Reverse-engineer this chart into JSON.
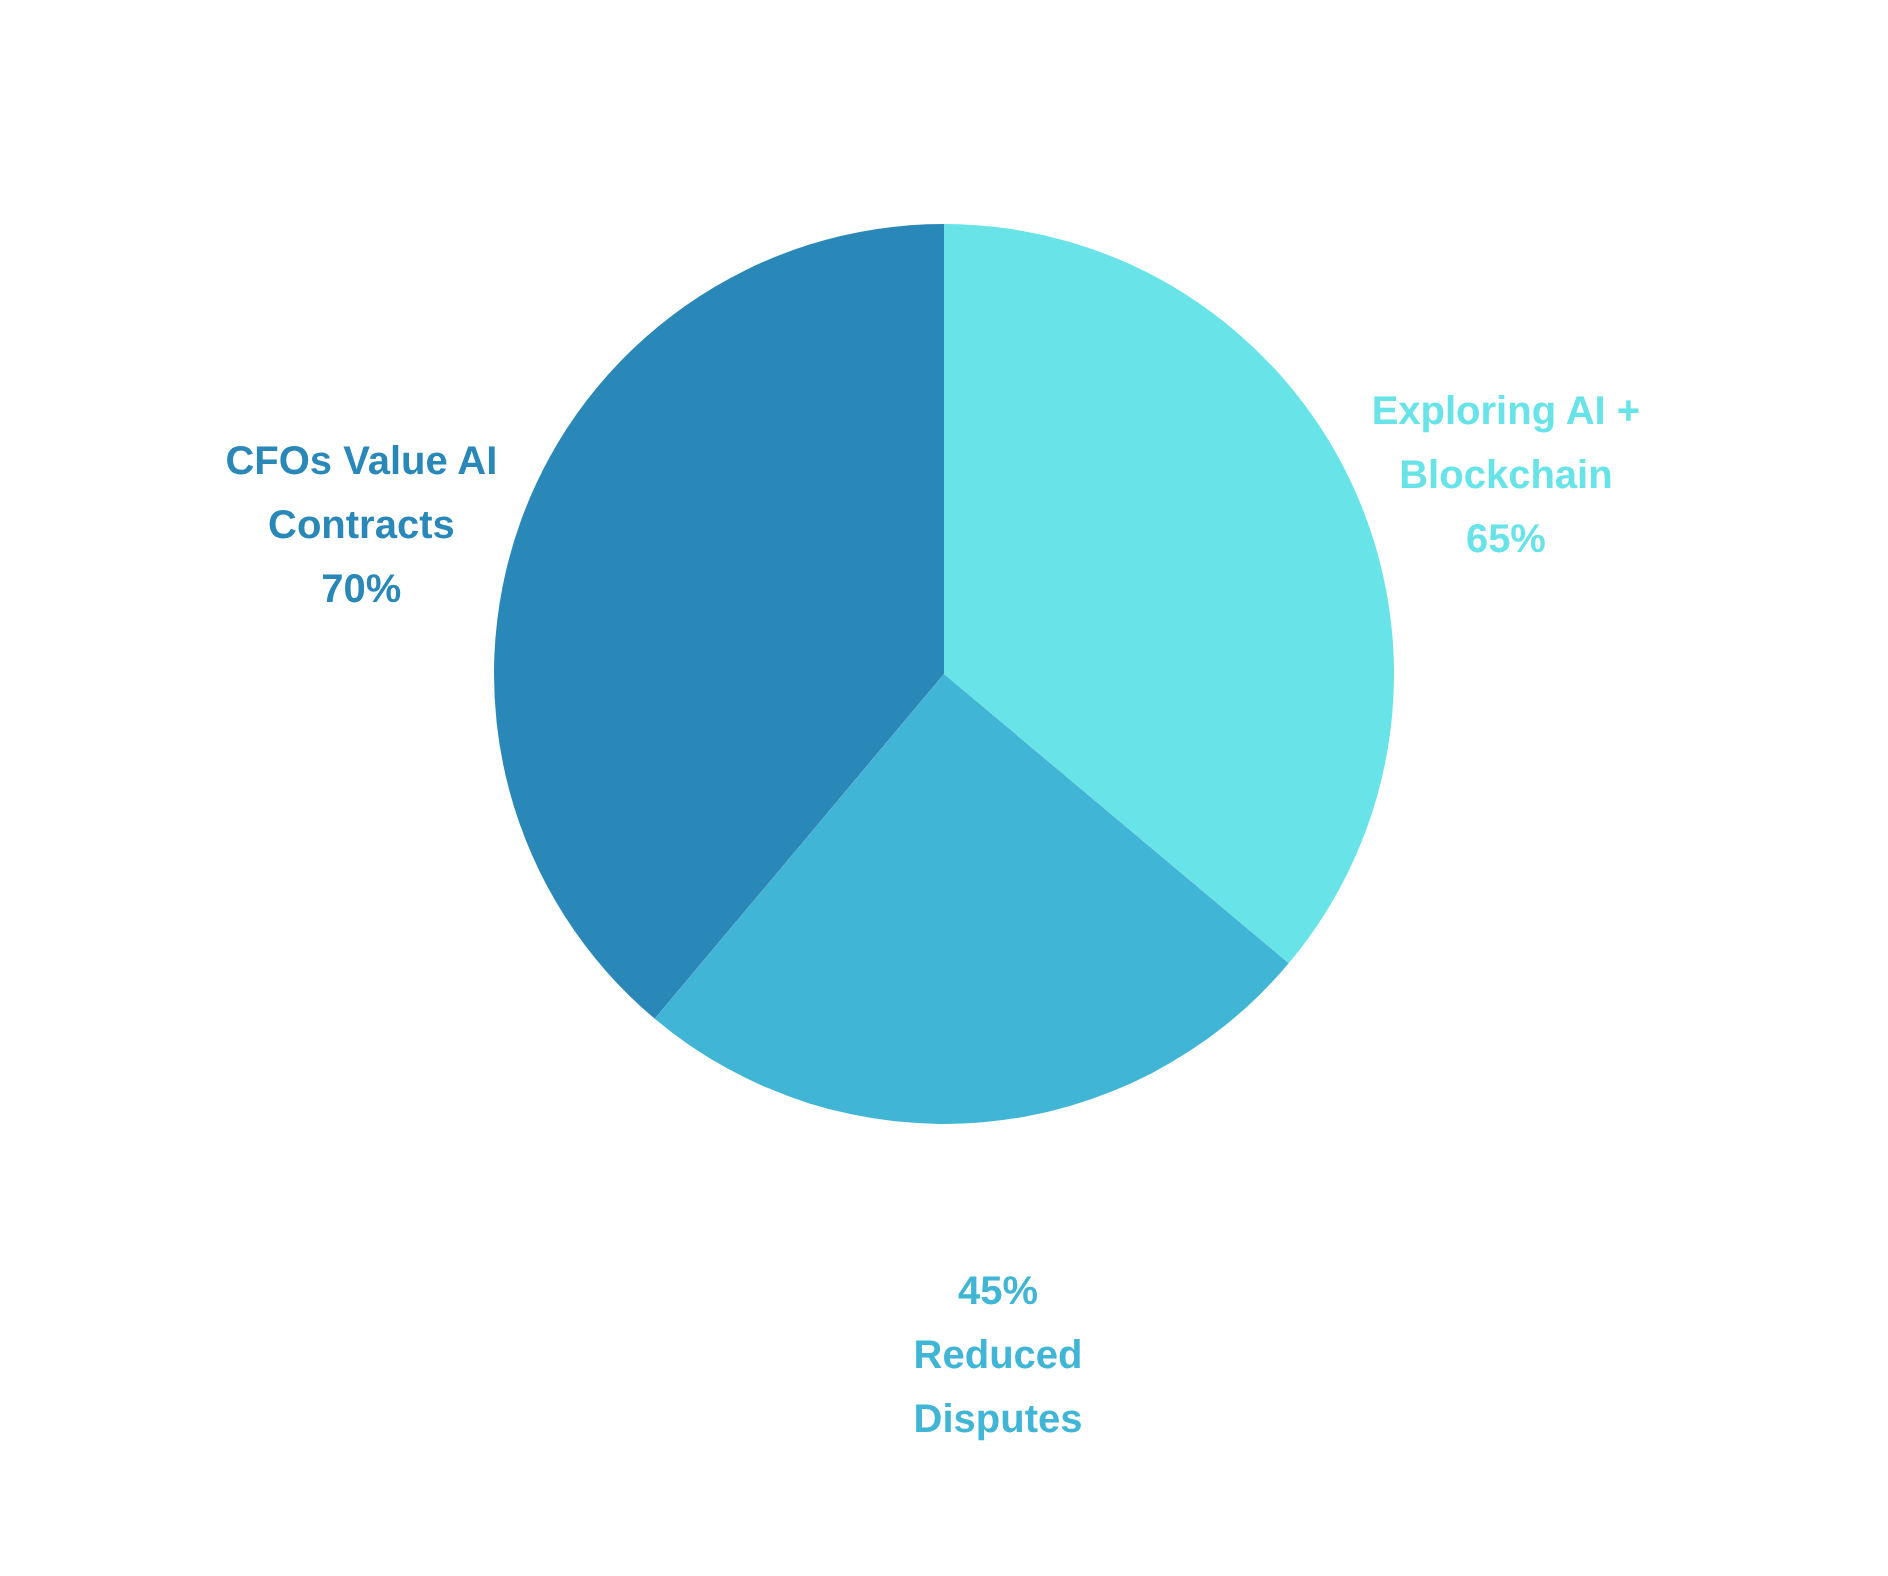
{
  "chart_data": {
    "type": "pie",
    "categories": [
      "Exploring AI + Blockchain",
      "Reduced Disputes",
      "CFOs Value AI Contracts"
    ],
    "values": [
      65,
      45,
      70
    ],
    "colors": [
      "#68e3e8",
      "#40b5d6",
      "#2a88b8"
    ],
    "value_labels": [
      "65%",
      "45%",
      "70%"
    ]
  }
}
